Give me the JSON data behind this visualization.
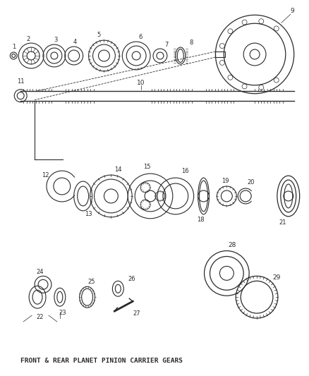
{
  "title": "FRONT & REAR PLANET PINION CARRIER GEARS",
  "bg_color": "#ffffff",
  "line_color": "#2a2a2a",
  "figsize": [
    4.38,
    5.33
  ],
  "dpi": 100
}
